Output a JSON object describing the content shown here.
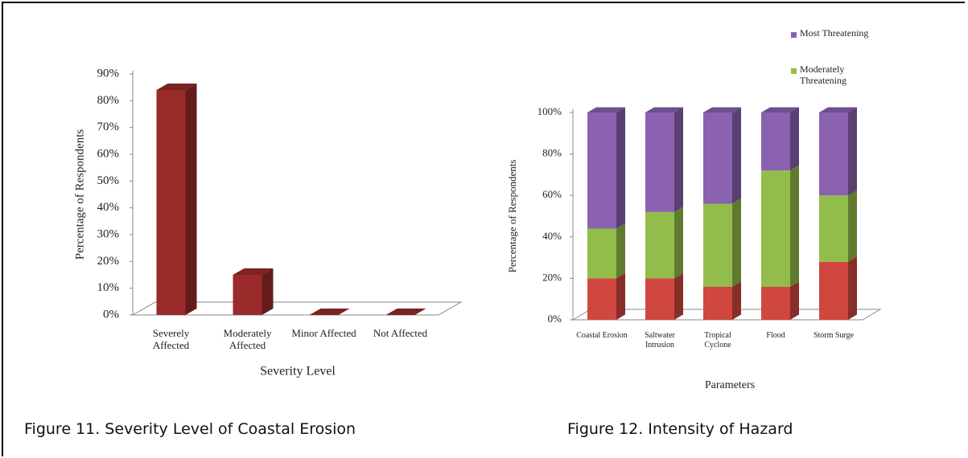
{
  "chart_data": [
    {
      "type": "bar",
      "caption": "Figure 11. Severity Level of Coastal Erosion",
      "x_label": "Severity Level",
      "y_label": "Percentage of Respondents",
      "categories": [
        "Severely Affected",
        "Moderately Affected",
        "Minor Affected",
        "Not Affected"
      ],
      "values": [
        84,
        15,
        0,
        0
      ],
      "color": "#9b2a2a",
      "ylim": [
        0,
        90
      ],
      "yticks": [
        {
          "value": 0,
          "label": "0%"
        },
        {
          "value": 10,
          "label": "10%"
        },
        {
          "value": 20,
          "label": "20%"
        },
        {
          "value": 30,
          "label": "30%"
        },
        {
          "value": 40,
          "label": "40%"
        },
        {
          "value": 50,
          "label": "50%"
        },
        {
          "value": 60,
          "label": "60%"
        },
        {
          "value": 70,
          "label": "70%"
        },
        {
          "value": 80,
          "label": "80%"
        },
        {
          "value": 90,
          "label": "90%"
        }
      ]
    },
    {
      "type": "stacked_bar",
      "caption": "Figure 12. Intensity of Hazard",
      "x_label": "Parameters",
      "y_label": "Percentage of Respondents",
      "categories": [
        "Coastal Erosion",
        "Saltwater Intrusion",
        "Tropical Cyclone",
        "Flood",
        "Storm Surge"
      ],
      "series": [
        {
          "color": "#d0473f",
          "values": [
            20,
            20,
            16,
            16,
            28
          ]
        },
        {
          "name": "Moderately Threatening",
          "color": "#93bd4a",
          "values": [
            24,
            32,
            40,
            56,
            32
          ]
        },
        {
          "name": "Most Threatening",
          "color": "#8a62b0",
          "values": [
            56,
            48,
            44,
            28,
            40
          ]
        }
      ],
      "ylim": [
        0,
        100
      ],
      "yticks": [
        {
          "value": 0,
          "label": "0%"
        },
        {
          "value": 20,
          "label": "20%"
        },
        {
          "value": 40,
          "label": "40%"
        },
        {
          "value": 60,
          "label": "60%"
        },
        {
          "value": 80,
          "label": "80%"
        },
        {
          "value": 100,
          "label": "100%"
        }
      ]
    }
  ]
}
